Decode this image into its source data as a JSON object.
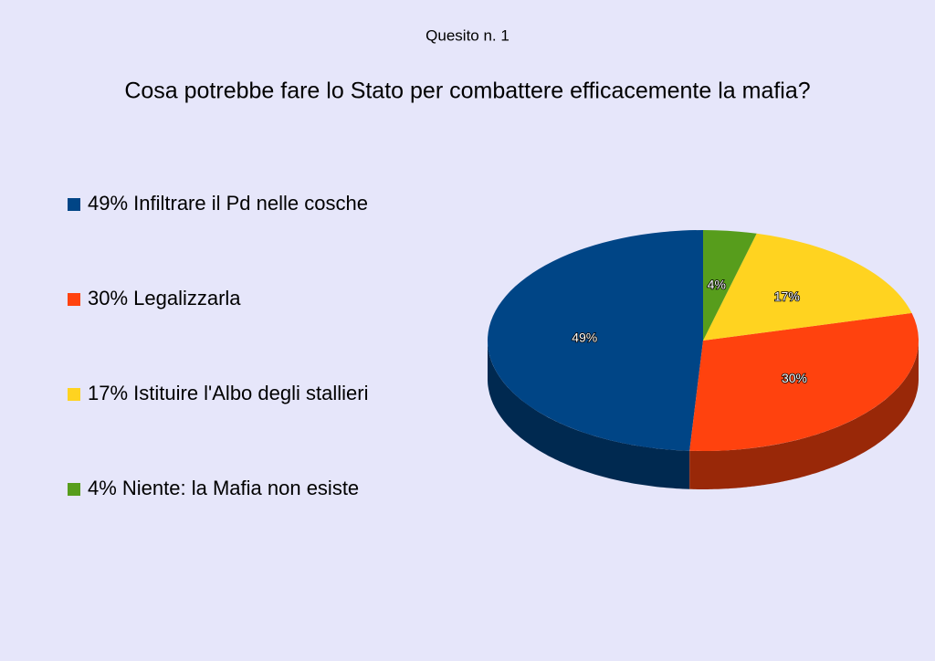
{
  "chart_data": {
    "type": "pie",
    "title": "Quesito n. 1",
    "subtitle": "Cosa potrebbe fare lo Stato per combattere efficacemente la mafia?",
    "categories": [
      "49% Infiltrare il Pd nelle cosche",
      "30% Legalizzarla",
      "17% Istituire l'Albo degli stallieri",
      "4% Niente: la Mafia non esiste"
    ],
    "values": [
      49,
      30,
      17,
      4
    ],
    "value_labels": [
      "49%",
      "30%",
      "17%",
      "4%"
    ],
    "colors": [
      "#004586",
      "#ff420e",
      "#ffd320",
      "#579d1c"
    ],
    "legend": "left"
  }
}
